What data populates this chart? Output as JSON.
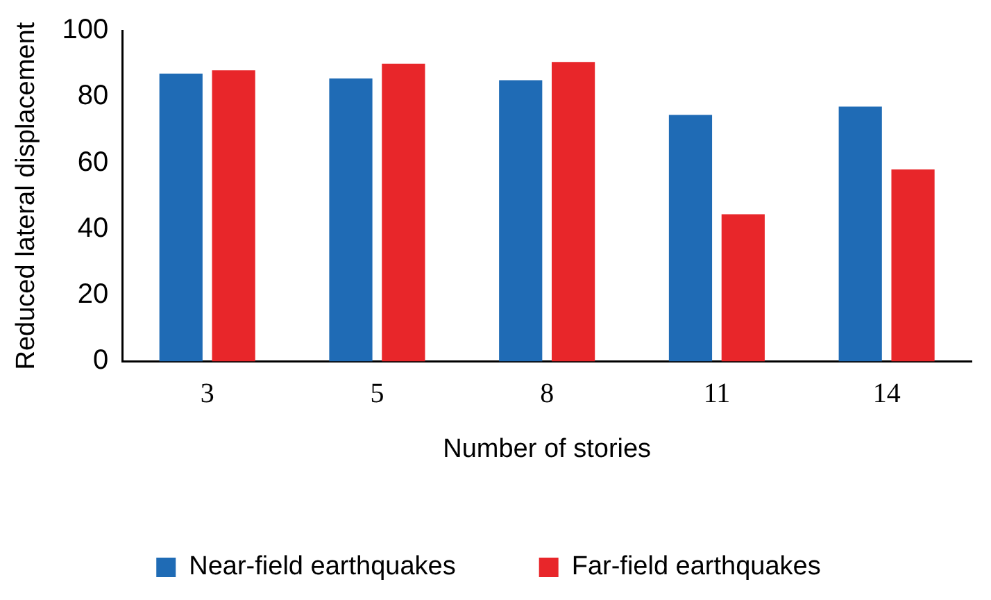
{
  "chart_data": {
    "type": "bar",
    "xlabel": "Number of stories",
    "ylabel": "Reduced lateral displacement",
    "categories": [
      "3",
      "5",
      "8",
      "11",
      "14"
    ],
    "series": [
      {
        "name": "Near-field earthquakes",
        "color": "#1f6bb5",
        "values": [
          87,
          85.5,
          85,
          74.5,
          77
        ]
      },
      {
        "name": "Far-field earthquakes",
        "color": "#e8262a",
        "values": [
          88,
          90,
          90.5,
          44.5,
          58
        ]
      }
    ],
    "ylim": [
      0,
      100
    ],
    "yticks": [
      0,
      20,
      40,
      60,
      80,
      100
    ],
    "grid": false,
    "legend": "bottom"
  }
}
